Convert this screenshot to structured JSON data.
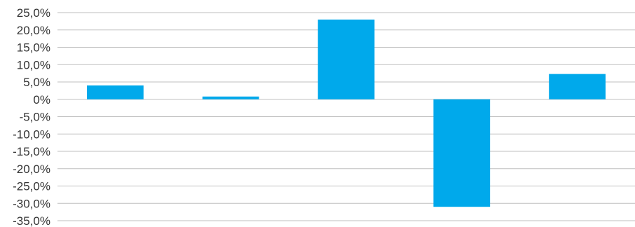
{
  "chart_data": {
    "type": "bar",
    "categories": [
      "",
      "",
      "",
      "",
      ""
    ],
    "series": [
      {
        "values": [
          4.0,
          0.8,
          23.0,
          -31.0,
          7.3
        ]
      }
    ],
    "title": "",
    "xlabel": "",
    "ylabel": "",
    "ylim": [
      -35,
      25
    ],
    "ytick_step": 5,
    "y_tick_labels": [
      "25,0%",
      "20,0%",
      "15,0%",
      "10,0%",
      "5,0%",
      "0%",
      "-5,0%",
      "-10,0%",
      "-15,0%",
      "-20,0%",
      "-25,0%",
      "-30,0%",
      "-35,0%"
    ],
    "grid": true,
    "legend": "none",
    "bar_color": "#00a9eb",
    "grid_color": "#bfbfbf"
  }
}
